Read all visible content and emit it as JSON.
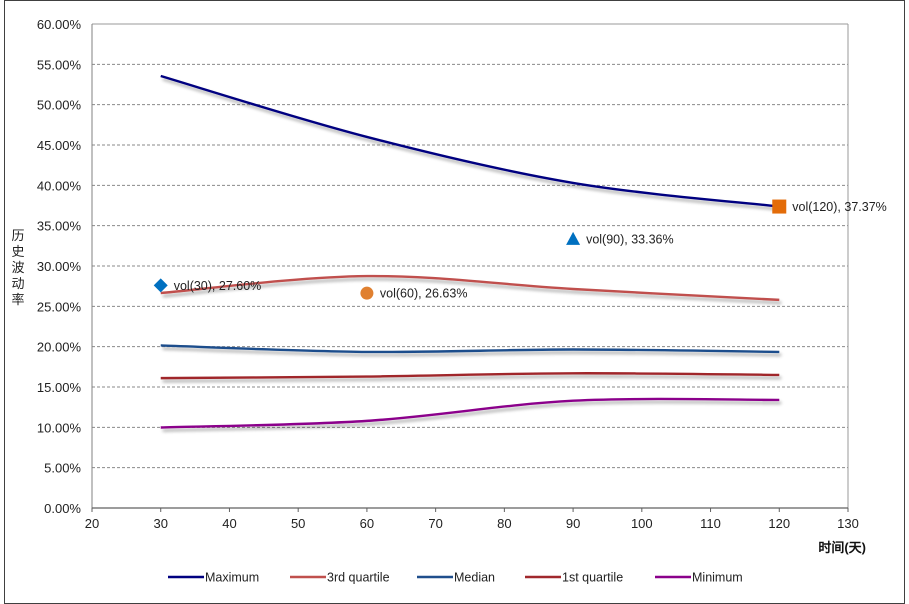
{
  "chart_data": {
    "type": "line",
    "title": "",
    "xlabel": "时间(天)",
    "ylabel": "历史波动率",
    "xlim": [
      20,
      130
    ],
    "ylim": [
      0,
      0.6
    ],
    "x_ticks": [
      20,
      30,
      40,
      50,
      60,
      70,
      80,
      90,
      100,
      110,
      120,
      130
    ],
    "x_tick_labels": [
      "20",
      "30",
      "40",
      "50",
      "60",
      "70",
      "80",
      "90",
      "100",
      "110",
      "120",
      "130"
    ],
    "y_ticks": [
      0,
      0.05,
      0.1,
      0.15,
      0.2,
      0.25,
      0.3,
      0.35,
      0.4,
      0.45,
      0.5,
      0.55,
      0.6
    ],
    "y_tick_labels": [
      "0.00%",
      "5.00%",
      "10.00%",
      "15.00%",
      "20.00%",
      "25.00%",
      "30.00%",
      "35.00%",
      "40.00%",
      "45.00%",
      "50.00%",
      "55.00%",
      "60.00%"
    ],
    "grid": "horizontal-dashed",
    "legend_position": "bottom",
    "x": [
      30,
      60,
      90,
      120
    ],
    "series": [
      {
        "name": "Maximum",
        "color": "#000080",
        "values": [
          0.5355,
          0.46,
          0.403,
          0.3737
        ]
      },
      {
        "name": "3rd quartile",
        "color": "#C0504D",
        "values": [
          0.2665,
          0.2875,
          0.2715,
          0.258
        ]
      },
      {
        "name": "Median",
        "color": "#1F4E8C",
        "values": [
          0.2015,
          0.1935,
          0.1965,
          0.1935
        ]
      },
      {
        "name": "1st quartile",
        "color": "#A0282C",
        "values": [
          0.161,
          0.163,
          0.167,
          0.165
        ]
      },
      {
        "name": "Minimum",
        "color": "#8B008B",
        "values": [
          0.0998,
          0.108,
          0.133,
          0.134
        ]
      }
    ],
    "points": [
      {
        "name": "vol(30)",
        "x": 30,
        "y": 0.276,
        "label": "vol(30), 27.60%",
        "marker": "diamond",
        "color": "#0070C0"
      },
      {
        "name": "vol(60)",
        "x": 60,
        "y": 0.2663,
        "label": "vol(60), 26.63%",
        "marker": "circle",
        "color": "#E08030"
      },
      {
        "name": "vol(90)",
        "x": 90,
        "y": 0.3336,
        "label": "vol(90), 33.36%",
        "marker": "triangle",
        "color": "#0070C0"
      },
      {
        "name": "vol(120)",
        "x": 120,
        "y": 0.3737,
        "label": "vol(120), 37.37%",
        "marker": "square",
        "color": "#E36C09"
      }
    ]
  }
}
